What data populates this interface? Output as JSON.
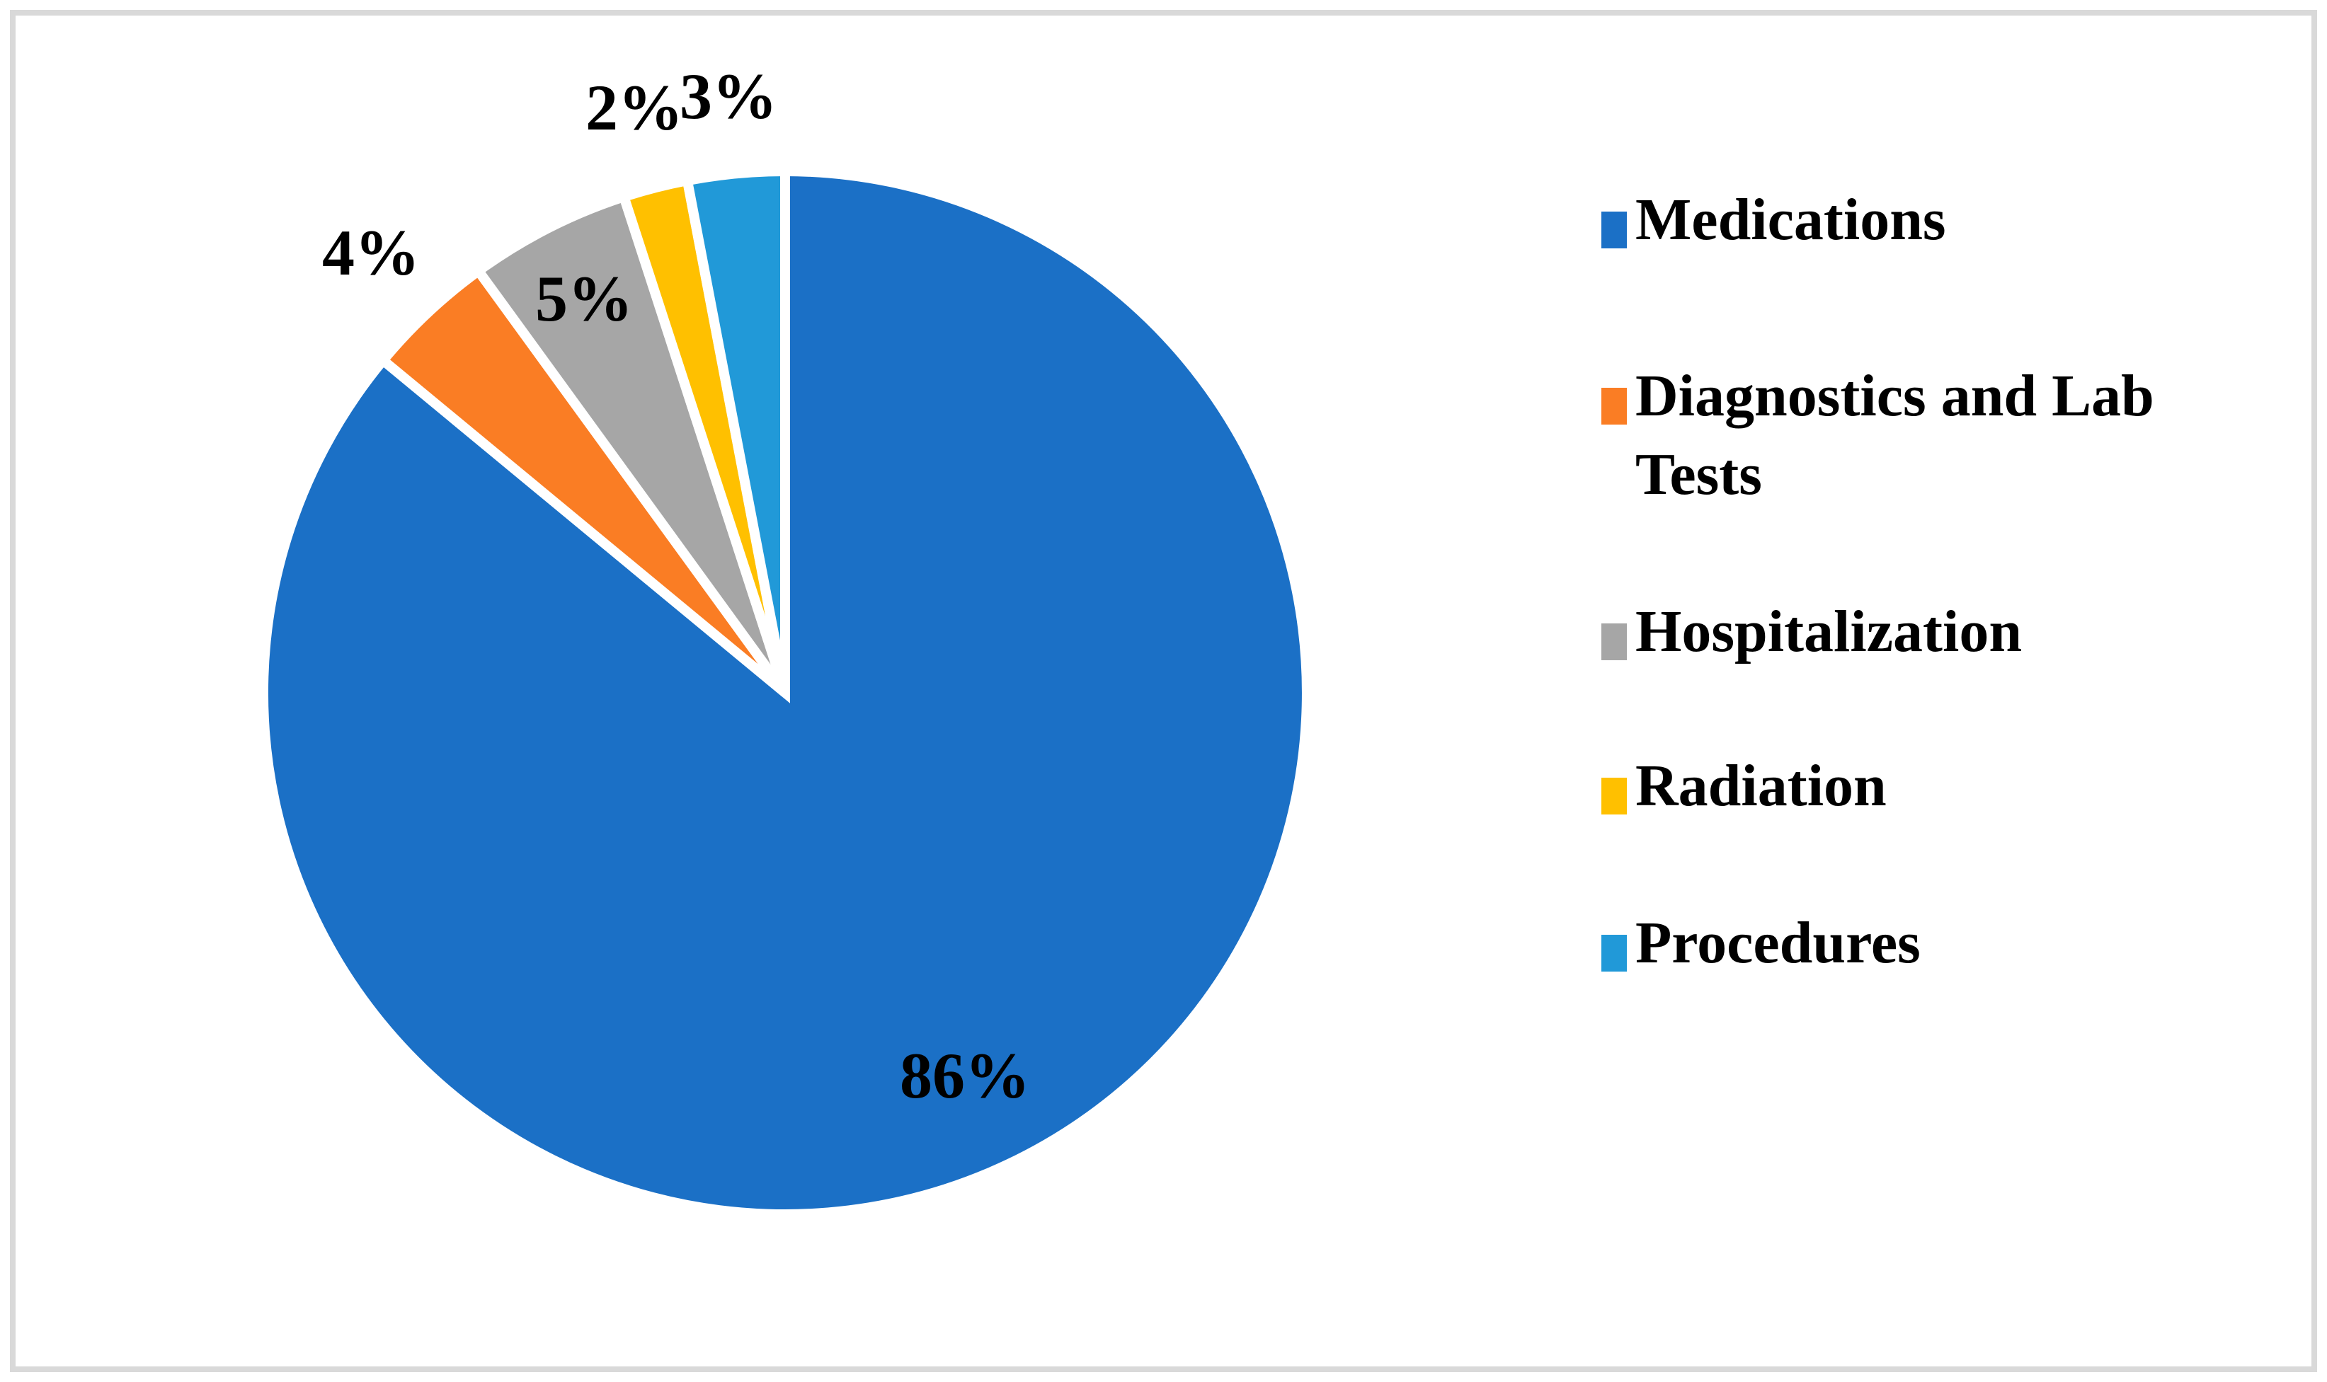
{
  "figure": {
    "background_color": "#FFFFFF",
    "frame_color": "#D9D9D9"
  },
  "chart_data": {
    "type": "pie",
    "title": "",
    "categories": [
      "Medications",
      "Diagnostics and Lab Tests",
      "Hospitalization",
      "Radiation",
      "Procedures"
    ],
    "values": [
      86,
      4,
      5,
      2,
      3
    ],
    "unit": "%",
    "data_labels": [
      "86%",
      "4%",
      "5%",
      "2%",
      "3%"
    ],
    "colors": [
      "#1B70C6",
      "#FA7D24",
      "#A6A6A6",
      "#FFC000",
      "#2199D8"
    ],
    "start_angle_deg": 0,
    "direction": "clockwise",
    "slice_separator_color": "#FFFFFF",
    "label_color": "#000000",
    "legend_position": "right",
    "grid": false
  },
  "legend": {
    "items": [
      {
        "label": "Medications",
        "lines": [
          "Medications"
        ],
        "color": "#1B70C6"
      },
      {
        "label": "Diagnostics and Lab Tests",
        "lines": [
          "Diagnostics and Lab",
          "Tests"
        ],
        "color": "#FA7D24"
      },
      {
        "label": "Hospitalization",
        "lines": [
          "Hospitalization"
        ],
        "color": "#A6A6A6"
      },
      {
        "label": "Radiation",
        "lines": [
          "Radiation"
        ],
        "color": "#FFC000"
      },
      {
        "label": "Procedures",
        "lines": [
          "Procedures"
        ],
        "color": "#2199D8"
      }
    ]
  }
}
